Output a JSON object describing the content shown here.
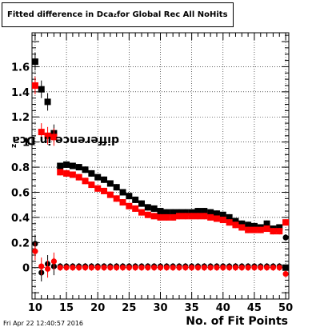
{
  "title": {
    "text": "Fitted difference in Dca",
    "sub": "z",
    "suffix": " for Global Rec All NoHits"
  },
  "timestamp": "Fri Apr 22 12:40:57 2016",
  "chart_data": {
    "type": "scatter",
    "xlabel": "No. of Fit Points",
    "ylabel": {
      "text": "difference in Dca",
      "sub": "z"
    },
    "xlim": [
      9.5,
      50.5
    ],
    "ylim": [
      -0.25,
      1.87
    ],
    "xticks": [
      10,
      15,
      20,
      25,
      30,
      35,
      40,
      45,
      50
    ],
    "yticks": [
      0,
      0.2,
      0.4,
      0.6,
      0.8,
      1,
      1.2,
      1.4,
      1.6
    ],
    "ytick_labels": [
      "0",
      "0.2",
      "0.4",
      "0.6",
      "0.8",
      "1",
      "1.2",
      "1.4",
      "1.6"
    ],
    "grid": true,
    "series": [
      {
        "marker": "square",
        "color": "#000000",
        "x": [
          10,
          11,
          12,
          13,
          14,
          15,
          16,
          17,
          18,
          19,
          20,
          21,
          22,
          23,
          24,
          25,
          26,
          27,
          28,
          29,
          30,
          31,
          32,
          33,
          34,
          35,
          36,
          37,
          38,
          39,
          40,
          41,
          42,
          43,
          44,
          45,
          46,
          47,
          48,
          49,
          50
        ],
        "y": [
          1.64,
          1.42,
          1.32,
          1.07,
          0.81,
          0.82,
          0.81,
          0.8,
          0.78,
          0.75,
          0.72,
          0.7,
          0.67,
          0.64,
          0.6,
          0.57,
          0.54,
          0.51,
          0.48,
          0.47,
          0.45,
          0.44,
          0.44,
          0.44,
          0.44,
          0.44,
          0.45,
          0.45,
          0.44,
          0.43,
          0.42,
          0.4,
          0.37,
          0.35,
          0.34,
          0.33,
          0.32,
          0.35,
          0.31,
          0.32,
          0.0
        ]
      },
      {
        "marker": "square",
        "color": "#ff0000",
        "x": [
          10,
          11,
          12,
          13,
          14,
          15,
          16,
          17,
          18,
          19,
          20,
          21,
          22,
          23,
          24,
          25,
          26,
          27,
          28,
          29,
          30,
          31,
          32,
          33,
          34,
          35,
          36,
          37,
          38,
          39,
          40,
          41,
          42,
          43,
          44,
          45,
          46,
          47,
          48,
          49,
          50
        ],
        "y": [
          1.45,
          1.08,
          1.05,
          1.04,
          0.76,
          0.75,
          0.74,
          0.72,
          0.69,
          0.66,
          0.63,
          0.61,
          0.58,
          0.55,
          0.52,
          0.49,
          0.47,
          0.44,
          0.42,
          0.41,
          0.4,
          0.4,
          0.4,
          0.41,
          0.41,
          0.41,
          0.41,
          0.41,
          0.4,
          0.39,
          0.38,
          0.36,
          0.34,
          0.32,
          0.3,
          0.3,
          0.3,
          0.31,
          0.29,
          0.29,
          0.36
        ]
      },
      {
        "marker": "circle",
        "color": "#000000",
        "x": [
          10,
          11,
          12,
          13,
          14,
          15,
          16,
          17,
          18,
          19,
          20,
          21,
          22,
          23,
          24,
          25,
          26,
          27,
          28,
          29,
          30,
          31,
          32,
          33,
          34,
          35,
          36,
          37,
          38,
          39,
          40,
          41,
          42,
          43,
          44,
          45,
          46,
          47,
          48,
          49,
          50
        ],
        "y": [
          0.19,
          -0.04,
          0.03,
          0.01,
          0.01,
          0.01,
          0.01,
          0.01,
          0.01,
          0.01,
          0.01,
          0.01,
          0.01,
          0.01,
          0.01,
          0.01,
          0.01,
          0.01,
          0.01,
          0.01,
          0.01,
          0.01,
          0.01,
          0.01,
          0.01,
          0.01,
          0.01,
          0.01,
          0.01,
          0.01,
          0.01,
          0.01,
          0.01,
          0.01,
          0.01,
          0.01,
          0.01,
          0.01,
          0.01,
          0.01,
          0.24
        ]
      },
      {
        "marker": "circle",
        "color": "#ff0000",
        "x": [
          10,
          11,
          12,
          13,
          14,
          15,
          16,
          17,
          18,
          19,
          20,
          21,
          22,
          23,
          24,
          25,
          26,
          27,
          28,
          29,
          30,
          31,
          32,
          33,
          34,
          35,
          36,
          37,
          38,
          39,
          40,
          41,
          42,
          43,
          44,
          45,
          46,
          47,
          48,
          49,
          50
        ],
        "y": [
          0.13,
          0.01,
          -0.01,
          0.05,
          0.0,
          0.0,
          0.0,
          0.0,
          0.0,
          0.0,
          0.0,
          0.0,
          0.0,
          0.0,
          0.0,
          0.0,
          0.0,
          0.0,
          0.0,
          0.0,
          0.0,
          0.0,
          0.0,
          0.0,
          0.0,
          0.0,
          0.0,
          0.0,
          0.0,
          0.0,
          0.0,
          0.0,
          0.0,
          0.0,
          0.0,
          0.0,
          0.0,
          0.0,
          0.0,
          0.0,
          -0.05
        ]
      }
    ]
  }
}
